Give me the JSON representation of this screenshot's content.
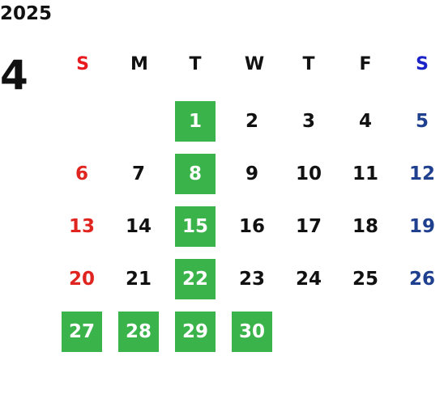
{
  "calendar": {
    "year": "2025",
    "month": "4",
    "weekday_labels": [
      "S",
      "M",
      "T",
      "W",
      "T",
      "F",
      "S"
    ],
    "colors": {
      "sunday_header": "#e8191f",
      "saturday_header": "#1a22c8",
      "sunday_date": "#e0241f",
      "saturday_date": "#1f3f8f",
      "highlight": "#3ab34a",
      "text": "#111111"
    },
    "weeks": [
      [
        {
          "day": "",
          "highlighted": false
        },
        {
          "day": "",
          "highlighted": false
        },
        {
          "day": "1",
          "highlighted": true
        },
        {
          "day": "2",
          "highlighted": false
        },
        {
          "day": "3",
          "highlighted": false
        },
        {
          "day": "4",
          "highlighted": false
        },
        {
          "day": "5",
          "highlighted": false
        }
      ],
      [
        {
          "day": "6",
          "highlighted": false
        },
        {
          "day": "7",
          "highlighted": false
        },
        {
          "day": "8",
          "highlighted": true
        },
        {
          "day": "9",
          "highlighted": false
        },
        {
          "day": "10",
          "highlighted": false
        },
        {
          "day": "11",
          "highlighted": false
        },
        {
          "day": "12",
          "highlighted": false
        }
      ],
      [
        {
          "day": "13",
          "highlighted": false
        },
        {
          "day": "14",
          "highlighted": false
        },
        {
          "day": "15",
          "highlighted": true
        },
        {
          "day": "16",
          "highlighted": false
        },
        {
          "day": "17",
          "highlighted": false
        },
        {
          "day": "18",
          "highlighted": false
        },
        {
          "day": "19",
          "highlighted": false
        }
      ],
      [
        {
          "day": "20",
          "highlighted": false
        },
        {
          "day": "21",
          "highlighted": false
        },
        {
          "day": "22",
          "highlighted": true
        },
        {
          "day": "23",
          "highlighted": false
        },
        {
          "day": "24",
          "highlighted": false
        },
        {
          "day": "25",
          "highlighted": false
        },
        {
          "day": "26",
          "highlighted": false
        }
      ],
      [
        {
          "day": "27",
          "highlighted": true
        },
        {
          "day": "28",
          "highlighted": true
        },
        {
          "day": "29",
          "highlighted": true
        },
        {
          "day": "30",
          "highlighted": true
        },
        {
          "day": "",
          "highlighted": false
        },
        {
          "day": "",
          "highlighted": false
        },
        {
          "day": "",
          "highlighted": false
        }
      ]
    ]
  }
}
